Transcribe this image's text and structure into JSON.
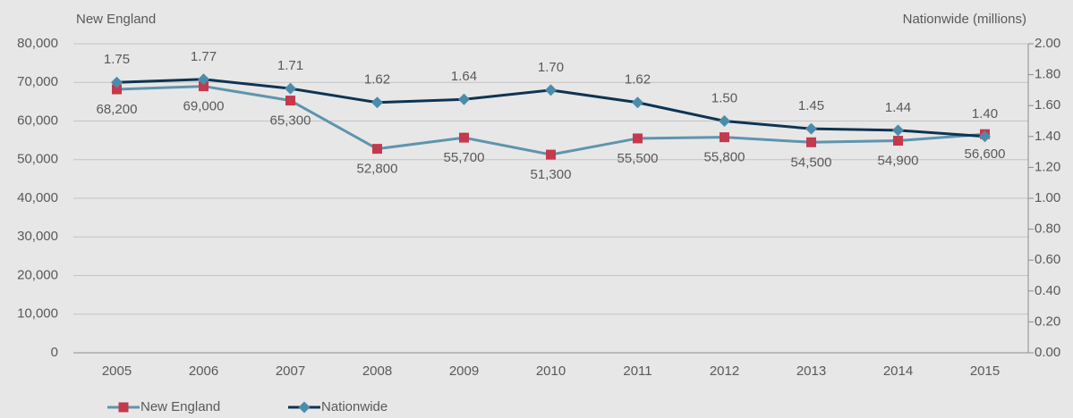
{
  "chart_data": {
    "type": "line",
    "y_label": "New England",
    "y2_label": "Nationwide (millions)",
    "categories": [
      "2005",
      "2006",
      "2007",
      "2008",
      "2009",
      "2010",
      "2011",
      "2012",
      "2013",
      "2014",
      "2015"
    ],
    "series": [
      {
        "name": "New England",
        "color": "#5f94ad",
        "marker_color": "#c4394c",
        "marker": "square",
        "values": [
          68200,
          69000,
          65300,
          52800,
          55700,
          51300,
          55500,
          55800,
          54500,
          54900,
          56600
        ],
        "value_labels": [
          "68,200",
          "69,000",
          "65,300",
          "52,800",
          "55,700",
          "51,300",
          "55,500",
          "55,800",
          "54,500",
          "54,900",
          "56,600"
        ]
      },
      {
        "name": "Nationwide",
        "color": "#0f3453",
        "marker_color": "#4c8cab",
        "marker": "diamond",
        "axis": "y2",
        "values": [
          1.75,
          1.77,
          1.71,
          1.62,
          1.64,
          1.7,
          1.62,
          1.5,
          1.45,
          1.44,
          1.4
        ],
        "value_labels": [
          "1.75",
          "1.77",
          "1.71",
          "1.62",
          "1.64",
          "1.70",
          "1.62",
          "1.50",
          "1.45",
          "1.44",
          "1.40"
        ]
      }
    ],
    "ylim": [
      0,
      80000
    ],
    "yticks": [
      {
        "value": 0,
        "label": "0"
      },
      {
        "value": 10000,
        "label": "10,000"
      },
      {
        "value": 20000,
        "label": "20,000"
      },
      {
        "value": 30000,
        "label": "30,000"
      },
      {
        "value": 40000,
        "label": "40,000"
      },
      {
        "value": 50000,
        "label": "50,000"
      },
      {
        "value": 60000,
        "label": "60,000"
      },
      {
        "value": 70000,
        "label": "70,000"
      },
      {
        "value": 80000,
        "label": "80,000"
      }
    ],
    "y2lim": [
      0,
      2
    ],
    "y2ticks": [
      {
        "value": 0,
        "label": "0.00"
      },
      {
        "value": 0.2,
        "label": "0.20"
      },
      {
        "value": 0.4,
        "label": "0.40"
      },
      {
        "value": 0.6,
        "label": "0.60"
      },
      {
        "value": 0.8,
        "label": "0.80"
      },
      {
        "value": 1,
        "label": "1.00"
      },
      {
        "value": 1.2,
        "label": "1.20"
      },
      {
        "value": 1.4,
        "label": "1.40"
      },
      {
        "value": 1.6,
        "label": "1.60"
      },
      {
        "value": 1.8,
        "label": "1.80"
      },
      {
        "value": 2,
        "label": "2.00"
      }
    ],
    "grid": true,
    "legend": "bottom-left"
  }
}
